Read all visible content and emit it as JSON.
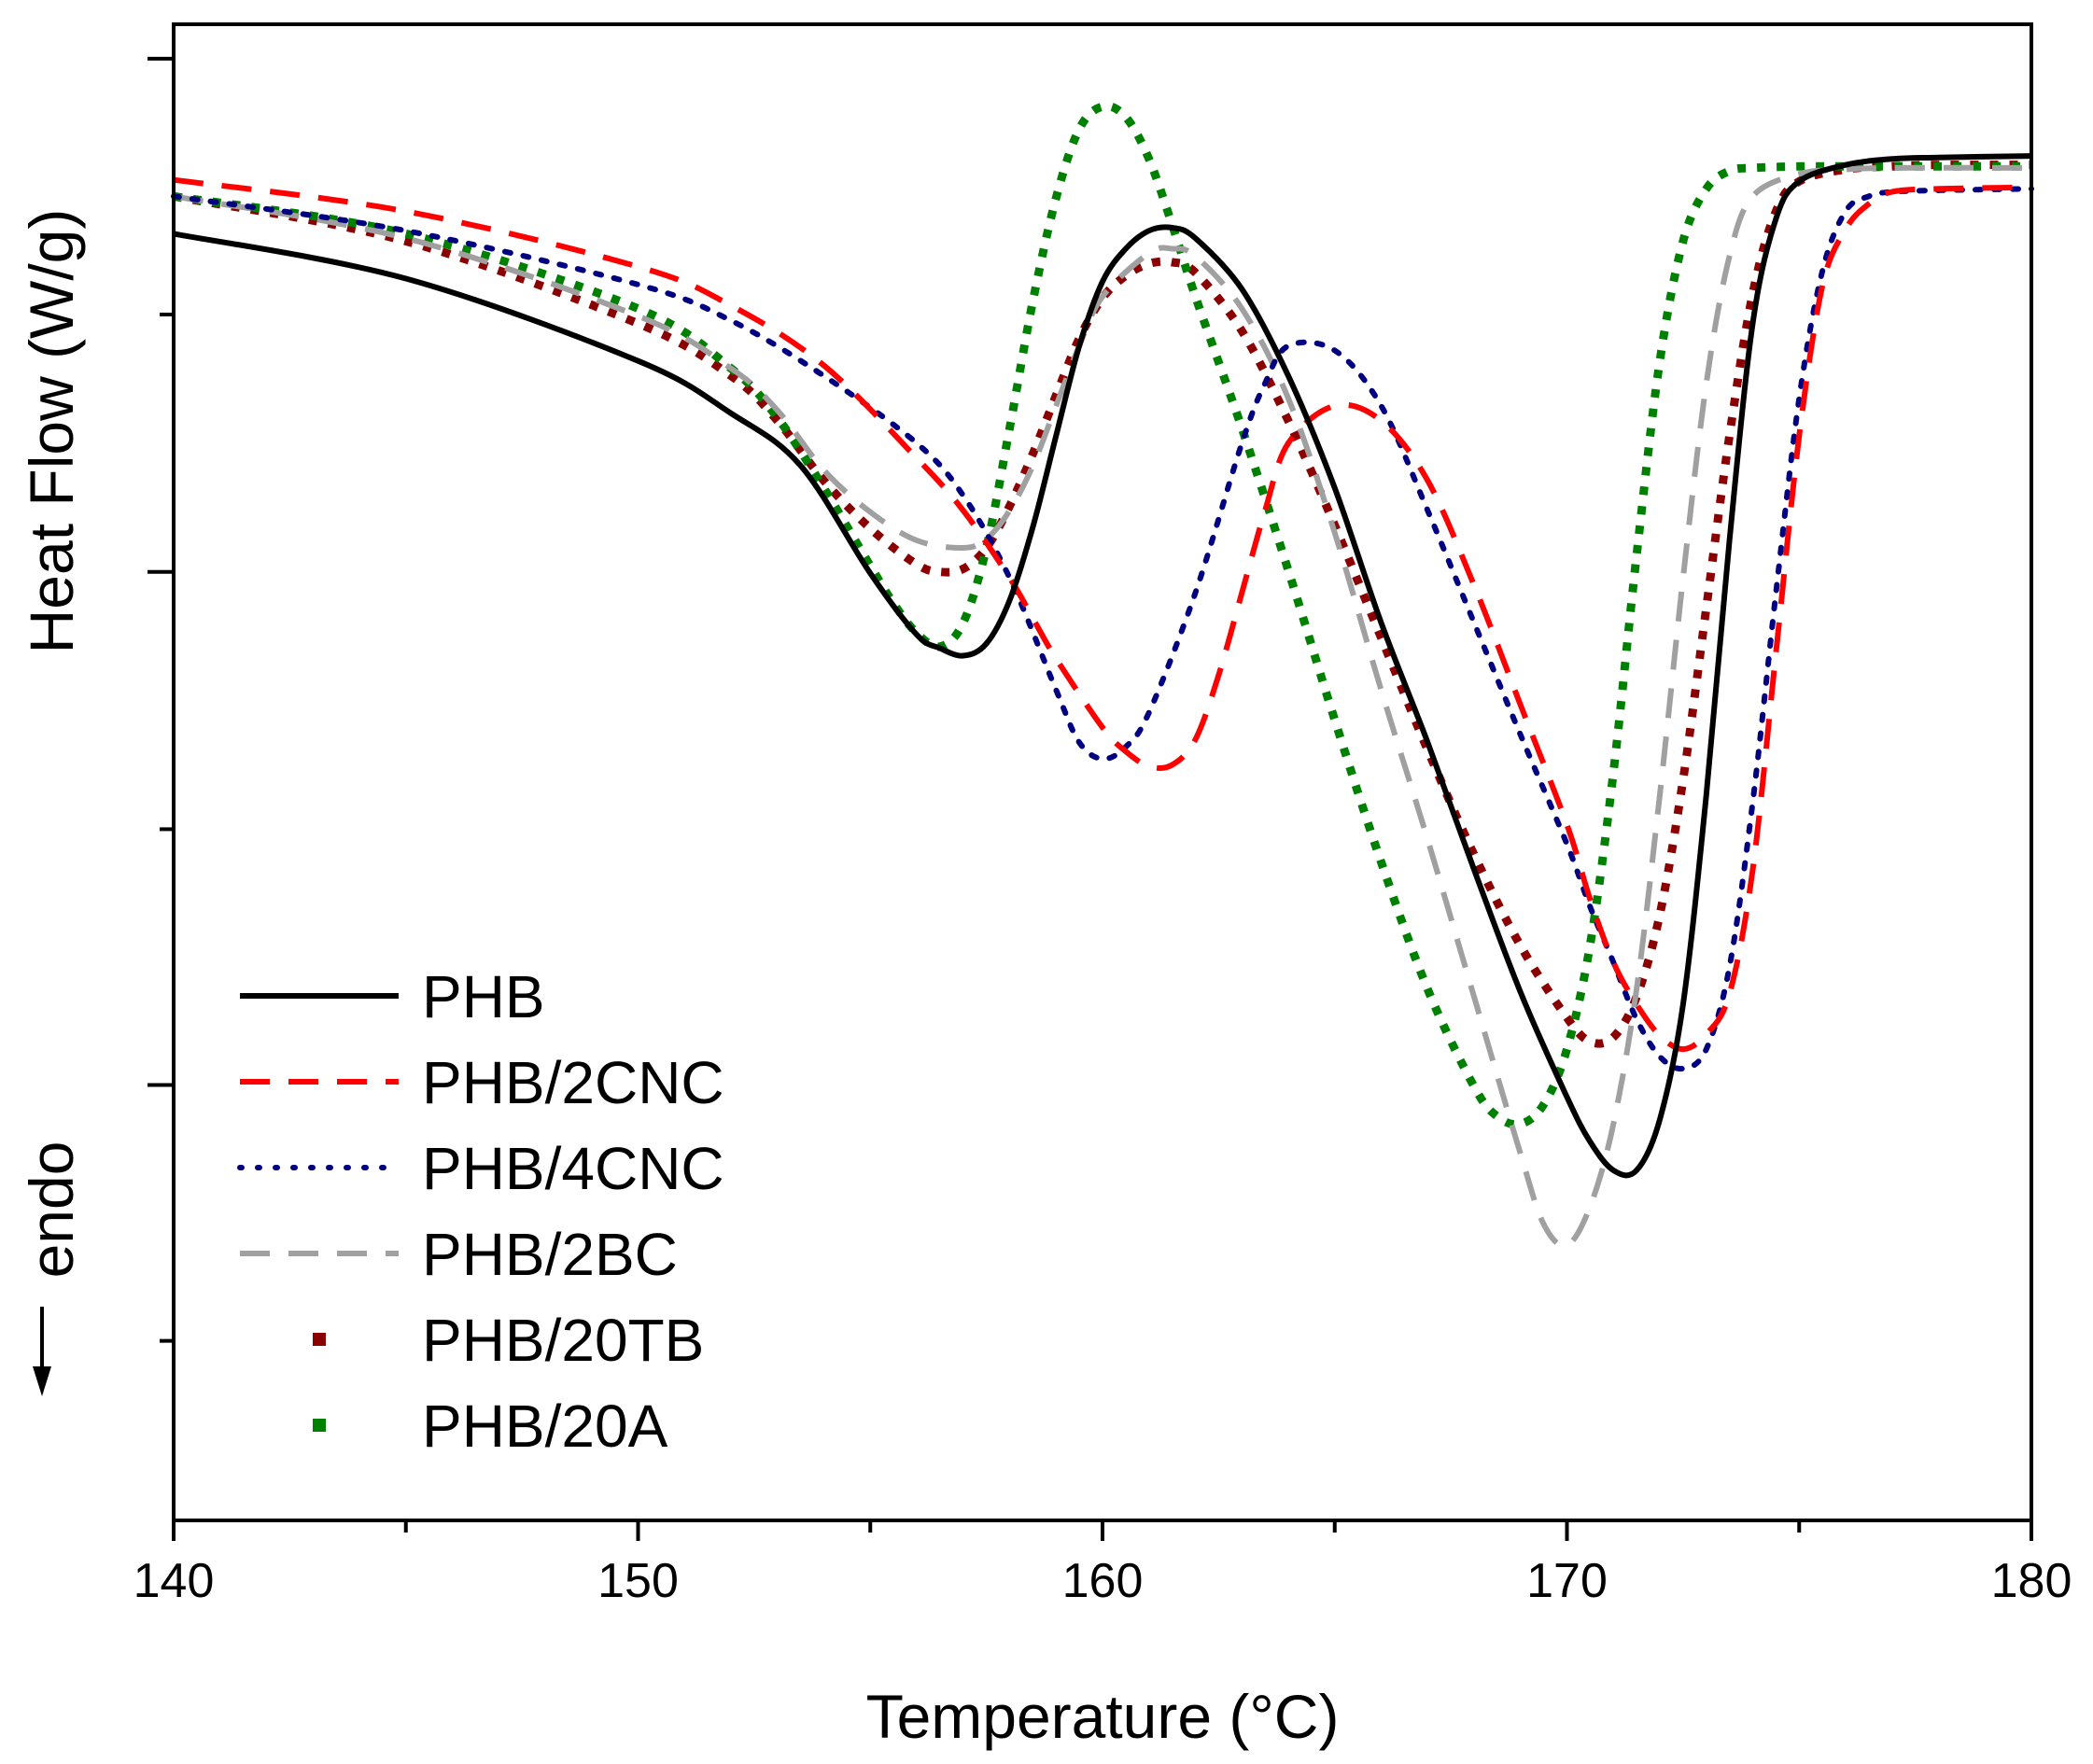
{
  "chart_data": {
    "type": "line",
    "title": "",
    "xlabel": "Temperature (°C)",
    "ylabel": "Heat Flow (W/g)",
    "y_note": "endo",
    "xlim": [
      140,
      180
    ],
    "ylim": [
      0,
      100
    ],
    "x_ticks": [
      140,
      150,
      160,
      170,
      180
    ],
    "x_tick_labels": [
      "140",
      "150",
      "160",
      "170",
      "180"
    ],
    "y_ticks": [
      12,
      29.1,
      46.2,
      63.4,
      80.6,
      97.7
    ],
    "y_tick_labels": [],
    "legend_position": "bottom-left",
    "series": [
      {
        "name": "PHB",
        "color": "#000000",
        "style": "solid",
        "x": [
          140,
          145,
          150,
          152,
          153.5,
          155,
          156,
          156.5,
          157,
          157.5,
          158,
          158.5,
          159,
          159.5,
          160,
          160.5,
          161,
          161.5,
          162,
          163,
          164,
          165,
          166,
          167,
          168,
          169,
          170,
          170.5,
          171,
          171.5,
          172,
          172.5,
          173,
          173.5,
          174,
          174.5,
          175,
          176,
          177,
          178,
          180
        ],
        "y": [
          86,
          83,
          77.5,
          74,
          70.5,
          63.3,
          59.2,
          58.3,
          57.8,
          58.6,
          61.5,
          66.4,
          72.5,
          78.5,
          82.8,
          85,
          86.2,
          86.4,
          85.7,
          82.3,
          76.5,
          69,
          60,
          52,
          43.5,
          35.3,
          28.3,
          25.3,
          23.4,
          23.4,
          26.8,
          34.5,
          48.5,
          65.5,
          80,
          87,
          89.5,
          90.6,
          91,
          91.1,
          91.2
        ]
      },
      {
        "name": "PHB/2CNC",
        "color": "#ff0000",
        "style": "dashed",
        "x": [
          140,
          145,
          150,
          152,
          154,
          156,
          157,
          158,
          158.5,
          159,
          160,
          160.5,
          161,
          161.5,
          162,
          162.5,
          163,
          163.5,
          164,
          165,
          166,
          167,
          168,
          169,
          170,
          170.5,
          171,
          171.5,
          172,
          172.5,
          173,
          173.5,
          174,
          174.5,
          175,
          175.5,
          176,
          176.5,
          177,
          178,
          180
        ],
        "y": [
          89.6,
          87.5,
          83.8,
          81.2,
          77.2,
          71,
          67.5,
          63,
          60.3,
          57.6,
          53,
          51.4,
          50.4,
          50.5,
          52.2,
          56.5,
          62,
          67.5,
          72,
          74.5,
          73.5,
          69.5,
          62.5,
          54.5,
          46.5,
          41.5,
          37.3,
          34.5,
          32.4,
          31.5,
          32.5,
          35.2,
          43.5,
          58,
          72.5,
          82.5,
          86.3,
          88,
          88.8,
          89,
          89.1
        ]
      },
      {
        "name": "PHB/4CNC",
        "color": "#000080",
        "style": "dotted",
        "x": [
          140,
          145,
          150,
          152,
          154,
          156,
          157,
          158,
          159,
          159.5,
          160,
          160.5,
          161,
          162,
          163,
          163.5,
          164,
          165,
          166,
          167,
          168,
          169,
          170,
          170.5,
          171,
          171.5,
          172,
          172.5,
          173,
          173.5,
          174,
          174.5,
          175,
          175.5,
          176,
          176.5,
          177,
          178,
          180
        ],
        "y": [
          88.5,
          86.2,
          82.6,
          80.2,
          76.5,
          72,
          68.5,
          63,
          55.5,
          52,
          50.9,
          51.7,
          54,
          62,
          72,
          76,
          78.5,
          78.2,
          74.5,
          67.5,
          60,
          52.5,
          45.2,
          41,
          37.3,
          33.5,
          31,
          30.2,
          31.5,
          37,
          48,
          62,
          75,
          83.5,
          87.5,
          88.5,
          88.8,
          88.9,
          89
        ]
      },
      {
        "name": "PHB/2BC",
        "color": "#a0a0a0",
        "style": "dashed",
        "x": [
          140,
          145,
          150,
          152,
          153,
          154,
          155,
          156,
          157,
          157.5,
          158,
          158.5,
          159,
          159.5,
          160,
          161,
          161.5,
          162,
          163,
          164,
          165,
          166,
          167,
          168,
          169,
          169.5,
          170,
          170.5,
          171,
          171.5,
          172,
          172.5,
          173,
          173.5,
          174,
          175,
          176,
          177,
          180
        ],
        "y": [
          88.5,
          85.7,
          80.5,
          77,
          74.2,
          70.2,
          67.4,
          65.5,
          65,
          65.6,
          67.5,
          70.5,
          74.5,
          78.5,
          81.8,
          84.7,
          85,
          84.5,
          81,
          75,
          66,
          55.5,
          45.5,
          35,
          24.5,
          19.8,
          18.4,
          21,
          26.5,
          35.5,
          48.5,
          63,
          76,
          84.5,
          88.5,
          90,
          90.3,
          90.4,
          90.4
        ]
      },
      {
        "name": "PHB/20TB",
        "color": "#8b0000",
        "style": "square",
        "x": [
          140,
          145,
          150,
          152,
          153,
          154,
          155,
          156,
          156.5,
          157,
          157.5,
          158,
          158.5,
          159,
          159.5,
          160,
          160.5,
          161,
          161.5,
          162,
          163,
          164,
          165,
          166,
          167,
          168,
          169,
          170,
          170.5,
          171,
          171.5,
          172,
          172.5,
          173,
          173.5,
          174,
          174.5,
          175,
          176,
          177,
          178,
          180
        ],
        "y": [
          88.5,
          85.5,
          80,
          76.5,
          73.5,
          69.5,
          66.3,
          63.9,
          63.4,
          63.6,
          65,
          67.8,
          71.3,
          75.2,
          79,
          81.7,
          83.2,
          84,
          84.1,
          83.4,
          79.5,
          73.5,
          66.5,
          59,
          51.5,
          44.5,
          38.4,
          33.6,
          32,
          32.3,
          35,
          40.5,
          49.5,
          61,
          72.5,
          82,
          87.5,
          89.5,
          90.3,
          90.5,
          90.6,
          90.6
        ]
      },
      {
        "name": "PHB/20A",
        "color": "#008000",
        "style": "square",
        "x": [
          140,
          145,
          150,
          152,
          153,
          154,
          155,
          155.5,
          156,
          156.5,
          157,
          157.5,
          158,
          158.5,
          159,
          159.5,
          160,
          160.5,
          161,
          161.5,
          162,
          163,
          164,
          165,
          166,
          167,
          168,
          168.5,
          169,
          169.5,
          170,
          170.5,
          171,
          171.5,
          172,
          172.5,
          173,
          173.5,
          174,
          175,
          176,
          180
        ],
        "y": [
          88.5,
          86,
          81,
          77,
          73.7,
          69,
          63.8,
          61.3,
          59.3,
          58.4,
          60,
          65,
          73,
          81.5,
          88.4,
          93,
          94.5,
          93.8,
          91,
          86.6,
          81.8,
          73,
          63.5,
          53.5,
          44,
          35.5,
          29,
          27,
          26.5,
          27.8,
          31.5,
          38.5,
          50,
          64.5,
          77.5,
          85.5,
          89,
          90.2,
          90.4,
          90.5,
          90.5,
          90.5
        ]
      }
    ]
  }
}
